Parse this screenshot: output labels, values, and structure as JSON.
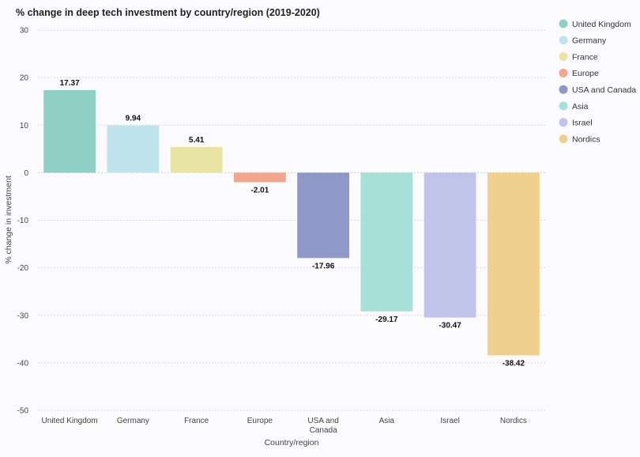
{
  "chart_data": {
    "type": "bar",
    "title": "% change in deep tech investment by country/region (2019-2020)",
    "xlabel": "Country/region",
    "ylabel": "% change in investment",
    "ylim": [
      -50,
      30
    ],
    "yticks": [
      30,
      20,
      10,
      0,
      -10,
      -20,
      -30,
      -40,
      -50
    ],
    "grid": true,
    "legend_position": "right",
    "categories": [
      "United Kingdom",
      "Germany",
      "France",
      "Europe",
      "USA and Canada",
      "Asia",
      "Israel",
      "Nordics"
    ],
    "category_tick_lines": [
      [
        "United Kingdom"
      ],
      [
        "Germany"
      ],
      [
        "France"
      ],
      [
        "Europe"
      ],
      [
        "USA and",
        "Canada"
      ],
      [
        "Asia"
      ],
      [
        "Israel"
      ],
      [
        "Nordics"
      ]
    ],
    "values": [
      17.37,
      9.94,
      5.41,
      -2.01,
      -17.96,
      -29.17,
      -30.47,
      -38.42
    ],
    "value_labels": [
      "17.37",
      "9.94",
      "5.41",
      "-2.01",
      "-17.96",
      "-29.17",
      "-30.47",
      "-38.42"
    ],
    "colors": [
      "#8fd0c6",
      "#bfe4ee",
      "#e8e4a3",
      "#f2a68e",
      "#8f98c8",
      "#a6e0d8",
      "#c0c3ea",
      "#f0d08f"
    ],
    "legend": [
      {
        "label": "United Kingdom",
        "color": "#8fd0c6"
      },
      {
        "label": "Germany",
        "color": "#bfe4ee"
      },
      {
        "label": "France",
        "color": "#e8e4a3"
      },
      {
        "label": "Europe",
        "color": "#f2a68e"
      },
      {
        "label": "USA and Canada",
        "color": "#8f98c8"
      },
      {
        "label": "Asia",
        "color": "#a6e0d8"
      },
      {
        "label": "Israel",
        "color": "#c0c3ea"
      },
      {
        "label": "Nordics",
        "color": "#f0d08f"
      }
    ]
  }
}
